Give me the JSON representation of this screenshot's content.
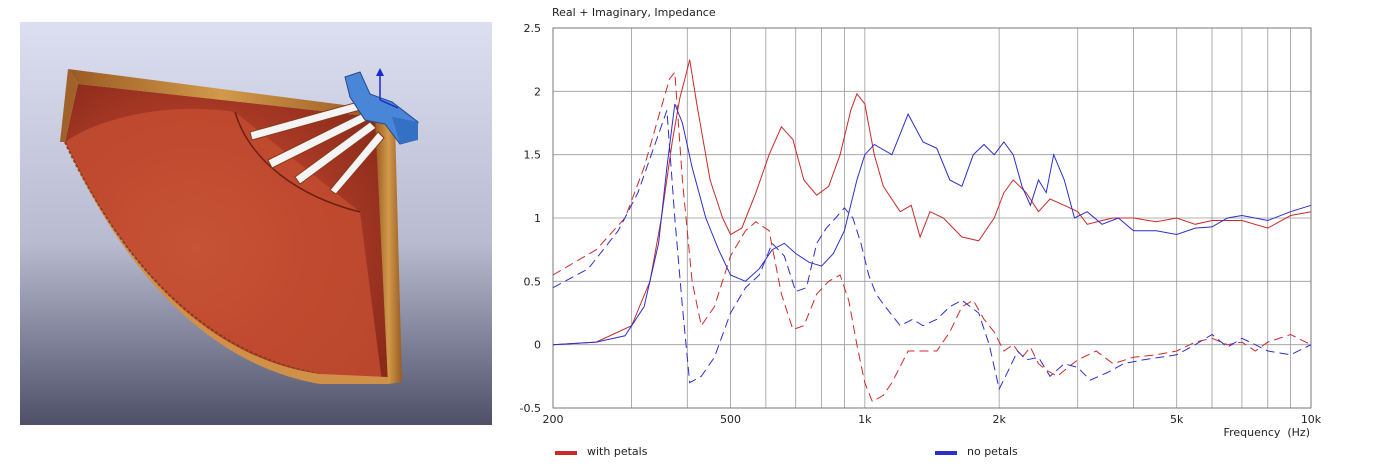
{
  "render": {
    "bg_top": "#dcdff0",
    "bg_bottom": "#4e5068",
    "wood_color": "#b5402a",
    "edge_color": "#c78a3a",
    "phase_plug_color": "#4a86d8"
  },
  "chart_data": {
    "type": "line",
    "title": "Real + Imaginary, Impedance",
    "xlabel": "Frequency  (Hz)",
    "ylabel": "",
    "xscale": "log",
    "xlim": [
      200,
      10000
    ],
    "ylim": [
      -0.5,
      2.5
    ],
    "grid": true,
    "legend": "bottom",
    "xticks": [
      {
        "v": 200,
        "label": "200"
      },
      {
        "v": 500,
        "label": "500"
      },
      {
        "v": 1000,
        "label": "1k"
      },
      {
        "v": 2000,
        "label": "2k"
      },
      {
        "v": 5000,
        "label": "5k"
      },
      {
        "v": 10000,
        "label": "10k"
      }
    ],
    "yticks": [
      {
        "v": 2.5,
        "label": "2.5"
      },
      {
        "v": 2,
        "label": "2"
      },
      {
        "v": 1.5,
        "label": "1.5"
      },
      {
        "v": 1,
        "label": "1"
      },
      {
        "v": 0.5,
        "label": "0.5"
      },
      {
        "v": 0,
        "label": "0"
      },
      {
        "v": -0.5,
        "label": "-0.5"
      }
    ],
    "series": [
      {
        "name": "with petals",
        "color": "#cc2a2a",
        "legend": true,
        "real": [
          [
            200,
            0.0
          ],
          [
            250,
            0.02
          ],
          [
            300,
            0.15
          ],
          [
            330,
            0.5
          ],
          [
            350,
            1.0
          ],
          [
            370,
            1.6
          ],
          [
            385,
            1.95
          ],
          [
            395,
            2.1
          ],
          [
            405,
            2.25
          ],
          [
            420,
            1.9
          ],
          [
            450,
            1.3
          ],
          [
            480,
            1.0
          ],
          [
            500,
            0.87
          ],
          [
            530,
            0.92
          ],
          [
            570,
            1.2
          ],
          [
            610,
            1.5
          ],
          [
            650,
            1.72
          ],
          [
            690,
            1.62
          ],
          [
            730,
            1.3
          ],
          [
            780,
            1.18
          ],
          [
            830,
            1.25
          ],
          [
            880,
            1.5
          ],
          [
            930,
            1.85
          ],
          [
            960,
            1.98
          ],
          [
            1000,
            1.9
          ],
          [
            1050,
            1.5
          ],
          [
            1100,
            1.25
          ],
          [
            1200,
            1.05
          ],
          [
            1270,
            1.1
          ],
          [
            1330,
            0.85
          ],
          [
            1400,
            1.05
          ],
          [
            1500,
            1.0
          ],
          [
            1650,
            0.85
          ],
          [
            1800,
            0.82
          ],
          [
            1950,
            1.0
          ],
          [
            2050,
            1.2
          ],
          [
            2150,
            1.3
          ],
          [
            2300,
            1.2
          ],
          [
            2450,
            1.05
          ],
          [
            2600,
            1.15
          ],
          [
            2800,
            1.1
          ],
          [
            3000,
            1.05
          ],
          [
            3150,
            0.95
          ],
          [
            3400,
            0.98
          ],
          [
            3600,
            1.0
          ],
          [
            4000,
            1.0
          ],
          [
            4500,
            0.97
          ],
          [
            5000,
            1.0
          ],
          [
            5500,
            0.95
          ],
          [
            6000,
            0.98
          ],
          [
            7000,
            0.98
          ],
          [
            8000,
            0.92
          ],
          [
            9000,
            1.02
          ],
          [
            10000,
            1.05
          ]
        ],
        "imag": [
          [
            200,
            0.55
          ],
          [
            250,
            0.75
          ],
          [
            290,
            1.0
          ],
          [
            320,
            1.4
          ],
          [
            345,
            1.8
          ],
          [
            365,
            2.1
          ],
          [
            375,
            2.15
          ],
          [
            390,
            1.3
          ],
          [
            410,
            0.5
          ],
          [
            430,
            0.15
          ],
          [
            460,
            0.3
          ],
          [
            500,
            0.7
          ],
          [
            540,
            0.9
          ],
          [
            570,
            0.97
          ],
          [
            610,
            0.9
          ],
          [
            650,
            0.4
          ],
          [
            690,
            0.12
          ],
          [
            730,
            0.15
          ],
          [
            780,
            0.4
          ],
          [
            830,
            0.5
          ],
          [
            880,
            0.55
          ],
          [
            920,
            0.35
          ],
          [
            960,
            0.0
          ],
          [
            1000,
            -0.3
          ],
          [
            1040,
            -0.45
          ],
          [
            1100,
            -0.4
          ],
          [
            1150,
            -0.3
          ],
          [
            1250,
            -0.05
          ],
          [
            1350,
            -0.05
          ],
          [
            1450,
            -0.05
          ],
          [
            1550,
            0.1
          ],
          [
            1650,
            0.3
          ],
          [
            1750,
            0.35
          ],
          [
            1850,
            0.2
          ],
          [
            1950,
            0.1
          ],
          [
            2050,
            -0.05
          ],
          [
            2150,
            0.0
          ],
          [
            2250,
            -0.1
          ],
          [
            2350,
            -0.02
          ],
          [
            2450,
            -0.15
          ],
          [
            2550,
            -0.2
          ],
          [
            2700,
            -0.25
          ],
          [
            2850,
            -0.18
          ],
          [
            3000,
            -0.12
          ],
          [
            3300,
            -0.05
          ],
          [
            3600,
            -0.15
          ],
          [
            4000,
            -0.1
          ],
          [
            4500,
            -0.08
          ],
          [
            5000,
            -0.05
          ],
          [
            5500,
            0.02
          ],
          [
            6000,
            0.05
          ],
          [
            6500,
            0.0
          ],
          [
            7000,
            0.02
          ],
          [
            7500,
            -0.05
          ],
          [
            8000,
            0.02
          ],
          [
            9000,
            0.08
          ],
          [
            10000,
            0.0
          ]
        ]
      },
      {
        "name": "no petals",
        "color": "#2e2ecc",
        "legend": true,
        "real": [
          [
            200,
            0.0
          ],
          [
            250,
            0.02
          ],
          [
            290,
            0.07
          ],
          [
            320,
            0.3
          ],
          [
            345,
            0.8
          ],
          [
            360,
            1.4
          ],
          [
            375,
            1.9
          ],
          [
            390,
            1.75
          ],
          [
            410,
            1.4
          ],
          [
            440,
            1.0
          ],
          [
            470,
            0.75
          ],
          [
            500,
            0.55
          ],
          [
            540,
            0.5
          ],
          [
            580,
            0.6
          ],
          [
            620,
            0.75
          ],
          [
            660,
            0.8
          ],
          [
            700,
            0.72
          ],
          [
            750,
            0.65
          ],
          [
            800,
            0.62
          ],
          [
            850,
            0.72
          ],
          [
            900,
            0.9
          ],
          [
            960,
            1.3
          ],
          [
            1000,
            1.5
          ],
          [
            1050,
            1.58
          ],
          [
            1150,
            1.5
          ],
          [
            1250,
            1.82
          ],
          [
            1350,
            1.6
          ],
          [
            1450,
            1.55
          ],
          [
            1550,
            1.3
          ],
          [
            1650,
            1.25
          ],
          [
            1750,
            1.5
          ],
          [
            1850,
            1.58
          ],
          [
            1950,
            1.5
          ],
          [
            2050,
            1.6
          ],
          [
            2150,
            1.5
          ],
          [
            2250,
            1.25
          ],
          [
            2350,
            1.1
          ],
          [
            2450,
            1.3
          ],
          [
            2550,
            1.2
          ],
          [
            2650,
            1.5
          ],
          [
            2800,
            1.3
          ],
          [
            2950,
            1.0
          ],
          [
            3150,
            1.05
          ],
          [
            3400,
            0.95
          ],
          [
            3700,
            1.0
          ],
          [
            4000,
            0.9
          ],
          [
            4500,
            0.9
          ],
          [
            5000,
            0.87
          ],
          [
            5500,
            0.92
          ],
          [
            6000,
            0.93
          ],
          [
            6500,
            1.0
          ],
          [
            7000,
            1.02
          ],
          [
            8000,
            0.98
          ],
          [
            9000,
            1.05
          ],
          [
            10000,
            1.1
          ]
        ],
        "imag": [
          [
            200,
            0.45
          ],
          [
            240,
            0.6
          ],
          [
            280,
            0.9
          ],
          [
            310,
            1.2
          ],
          [
            340,
            1.6
          ],
          [
            360,
            1.85
          ],
          [
            375,
            1.0
          ],
          [
            390,
            0.3
          ],
          [
            405,
            -0.3
          ],
          [
            430,
            -0.25
          ],
          [
            460,
            -0.1
          ],
          [
            500,
            0.25
          ],
          [
            540,
            0.45
          ],
          [
            580,
            0.55
          ],
          [
            620,
            0.8
          ],
          [
            660,
            0.7
          ],
          [
            700,
            0.42
          ],
          [
            740,
            0.45
          ],
          [
            780,
            0.8
          ],
          [
            820,
            0.92
          ],
          [
            860,
            1.0
          ],
          [
            900,
            1.08
          ],
          [
            940,
            1.0
          ],
          [
            980,
            0.8
          ],
          [
            1020,
            0.55
          ],
          [
            1060,
            0.4
          ],
          [
            1100,
            0.32
          ],
          [
            1200,
            0.15
          ],
          [
            1280,
            0.2
          ],
          [
            1350,
            0.15
          ],
          [
            1450,
            0.2
          ],
          [
            1550,
            0.3
          ],
          [
            1650,
            0.35
          ],
          [
            1800,
            0.25
          ],
          [
            1900,
            0.0
          ],
          [
            2000,
            -0.35
          ],
          [
            2100,
            -0.2
          ],
          [
            2200,
            -0.05
          ],
          [
            2300,
            -0.12
          ],
          [
            2450,
            -0.1
          ],
          [
            2600,
            -0.25
          ],
          [
            2800,
            -0.15
          ],
          [
            3000,
            -0.18
          ],
          [
            3200,
            -0.28
          ],
          [
            3500,
            -0.22
          ],
          [
            3800,
            -0.15
          ],
          [
            4200,
            -0.12
          ],
          [
            4600,
            -0.1
          ],
          [
            5000,
            -0.08
          ],
          [
            5500,
            0.0
          ],
          [
            6000,
            0.08
          ],
          [
            6500,
            -0.02
          ],
          [
            7000,
            0.05
          ],
          [
            7500,
            0.0
          ],
          [
            8000,
            -0.05
          ],
          [
            9000,
            -0.08
          ],
          [
            10000,
            0.0
          ]
        ]
      }
    ]
  }
}
